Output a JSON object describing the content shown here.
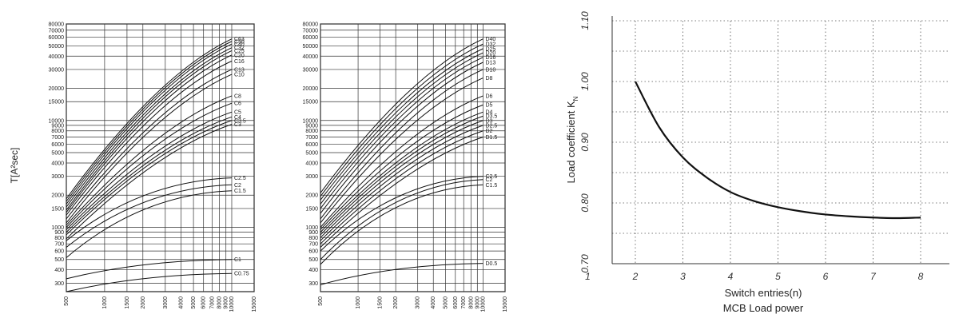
{
  "chart_data": [
    {
      "type": "line",
      "ylabel": "T[A²sec]",
      "x_ticks": [
        "500",
        "1000",
        "1500",
        "2000",
        "3000",
        "4000",
        "5000",
        "6000",
        "7000",
        "8000",
        "9000",
        "10000",
        "15000"
      ],
      "y_ticks": [
        "300",
        "400",
        "500",
        "600",
        "700",
        "800",
        "900",
        "1000",
        "1500",
        "2000",
        "3000",
        "4000",
        "5000",
        "6000",
        "7000",
        "8000",
        "9000",
        "10000",
        "15000",
        "20000",
        "30000",
        "40000",
        "50000",
        "60000",
        "70000",
        "80000"
      ],
      "series": [
        {
          "name": "C63",
          "values": [
            [
              500,
              1850
            ],
            [
              10000,
              58000
            ]
          ]
        },
        {
          "name": "C50",
          "values": [
            [
              500,
              1750
            ],
            [
              10000,
              55000
            ]
          ]
        },
        {
          "name": "C40",
          "values": [
            [
              500,
              1650
            ],
            [
              10000,
              52000
            ]
          ]
        },
        {
          "name": "C32",
          "values": [
            [
              500,
              1550
            ],
            [
              10000,
              48000
            ]
          ]
        },
        {
          "name": "C25",
          "values": [
            [
              500,
              1450
            ],
            [
              10000,
              45000
            ]
          ]
        },
        {
          "name": "C20",
          "values": [
            [
              500,
              1380
            ],
            [
              10000,
              41000
            ]
          ]
        },
        {
          "name": "C16",
          "values": [
            [
              500,
              1300
            ],
            [
              10000,
              36000
            ]
          ]
        },
        {
          "name": "C13",
          "values": [
            [
              500,
              1200
            ],
            [
              10000,
              30000
            ]
          ]
        },
        {
          "name": "C10",
          "values": [
            [
              500,
              1100
            ],
            [
              10000,
              27000
            ]
          ]
        },
        {
          "name": "C8",
          "values": [
            [
              500,
              1050
            ],
            [
              10000,
              17000
            ]
          ]
        },
        {
          "name": "C6",
          "values": [
            [
              500,
              1000
            ],
            [
              10000,
              14500
            ]
          ]
        },
        {
          "name": "C5",
          "values": [
            [
              500,
              950
            ],
            [
              10000,
              12000
            ]
          ]
        },
        {
          "name": "C4",
          "values": [
            [
              500,
              900
            ],
            [
              10000,
              10800
            ]
          ]
        },
        {
          "name": "C3.5",
          "values": [
            [
              500,
              850
            ],
            [
              10000,
              10000
            ]
          ]
        },
        {
          "name": "C3",
          "values": [
            [
              500,
              780
            ],
            [
              10000,
              9200
            ]
          ]
        },
        {
          "name": "C2.5",
          "values": [
            [
              500,
              750
            ],
            [
              10000,
              2900
            ]
          ]
        },
        {
          "name": "C2",
          "values": [
            [
              500,
              650
            ],
            [
              10000,
              2500
            ]
          ]
        },
        {
          "name": "C1.5",
          "values": [
            [
              500,
              520
            ],
            [
              10000,
              2200
            ]
          ]
        },
        {
          "name": "C1",
          "values": [
            [
              500,
              330
            ],
            [
              10000,
              500
            ]
          ]
        },
        {
          "name": "C0.75",
          "values": [
            [
              500,
              250
            ],
            [
              10000,
              370
            ]
          ]
        }
      ]
    },
    {
      "type": "line",
      "ylabel": "",
      "x_ticks": [
        "500",
        "1000",
        "1500",
        "2000",
        "3000",
        "4000",
        "5000",
        "6000",
        "7000",
        "8000",
        "9000",
        "10000",
        "15000"
      ],
      "y_ticks": [
        "300",
        "400",
        "500",
        "600",
        "700",
        "800",
        "900",
        "1000",
        "1500",
        "2000",
        "3000",
        "4000",
        "5000",
        "6000",
        "7000",
        "8000",
        "9000",
        "10000",
        "15000",
        "20000",
        "30000",
        "40000",
        "50000",
        "60000",
        "70000",
        "80000"
      ],
      "series": [
        {
          "name": "D40",
          "values": [
            [
              500,
              2100
            ],
            [
              10000,
              58000
            ]
          ]
        },
        {
          "name": "D32",
          "values": [
            [
              500,
              1950
            ],
            [
              10000,
              52000
            ]
          ]
        },
        {
          "name": "D25",
          "values": [
            [
              500,
              1800
            ],
            [
              10000,
              47000
            ]
          ]
        },
        {
          "name": "D20",
          "values": [
            [
              500,
              1650
            ],
            [
              10000,
              43000
            ]
          ]
        },
        {
          "name": "D16",
          "values": [
            [
              500,
              1500
            ],
            [
              10000,
              39000
            ]
          ]
        },
        {
          "name": "D13",
          "values": [
            [
              500,
              1350
            ],
            [
              10000,
              35000
            ]
          ]
        },
        {
          "name": "D10",
          "values": [
            [
              500,
              1200
            ],
            [
              10000,
              30000
            ]
          ]
        },
        {
          "name": "D8",
          "values": [
            [
              500,
              1100
            ],
            [
              10000,
              25000
            ]
          ]
        },
        {
          "name": "D6",
          "values": [
            [
              500,
              1000
            ],
            [
              10000,
              17000
            ]
          ]
        },
        {
          "name": "D5",
          "values": [
            [
              500,
              950
            ],
            [
              10000,
              14000
            ]
          ]
        },
        {
          "name": "D4",
          "values": [
            [
              500,
              900
            ],
            [
              10000,
              12000
            ]
          ]
        },
        {
          "name": "D3.5",
          "values": [
            [
              500,
              850
            ],
            [
              10000,
              11000
            ]
          ]
        },
        {
          "name": "D3",
          "values": [
            [
              500,
              800
            ],
            [
              10000,
              10000
            ]
          ]
        },
        {
          "name": "D2.5",
          "values": [
            [
              500,
              750
            ],
            [
              10000,
              9000
            ]
          ]
        },
        {
          "name": "D2",
          "values": [
            [
              500,
              700
            ],
            [
              10000,
              8000
            ]
          ]
        },
        {
          "name": "D1.5",
          "values": [
            [
              500,
              650
            ],
            [
              10000,
              7000
            ]
          ]
        },
        {
          "name": "C2.5",
          "values": [
            [
              500,
              600
            ],
            [
              10000,
              3000
            ]
          ]
        },
        {
          "name": "C2",
          "values": [
            [
              500,
              500
            ],
            [
              10000,
              2800
            ]
          ]
        },
        {
          "name": "C1.5",
          "values": [
            [
              500,
              450
            ],
            [
              10000,
              2500
            ]
          ]
        },
        {
          "name": "D0.5",
          "values": [
            [
              500,
              290
            ],
            [
              10000,
              460
            ]
          ]
        }
      ]
    },
    {
      "type": "line",
      "title": "",
      "xlabel": "Switch entries(n)",
      "xlabel2": "MCB Load power",
      "ylabel_main": "Load coefficient K",
      "ylabel_sub": "N",
      "x_ticks": [
        "1",
        "2",
        "3",
        "4",
        "5",
        "6",
        "7",
        "8"
      ],
      "y_ticks": [
        "0.70",
        "0.80",
        "0.90",
        "1.00",
        "1.10"
      ],
      "xlim": [
        1,
        8.6
      ],
      "ylim": [
        0.7,
        1.1
      ],
      "grid": true,
      "series": [
        {
          "values": [
            [
              2,
              1.0
            ],
            [
              2.5,
              0.925
            ],
            [
              3,
              0.875
            ],
            [
              3.5,
              0.842
            ],
            [
              4,
              0.818
            ],
            [
              4.5,
              0.803
            ],
            [
              5,
              0.793
            ],
            [
              5.5,
              0.786
            ],
            [
              6,
              0.781
            ],
            [
              6.5,
              0.778
            ],
            [
              7,
              0.776
            ],
            [
              7.5,
              0.775
            ],
            [
              8,
              0.776
            ]
          ]
        }
      ]
    }
  ]
}
